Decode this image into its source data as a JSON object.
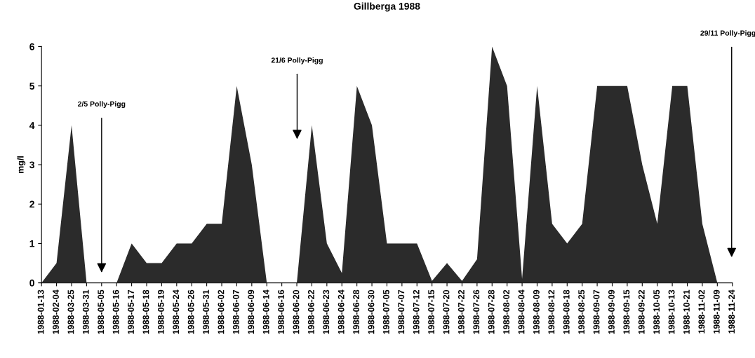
{
  "chart_data": {
    "type": "area",
    "title": "Gillberga 1988",
    "ylabel": "mg/l",
    "categories": [
      "1988-01-13",
      "1988-02-04",
      "1988-03-25",
      "1988-03-31",
      "1988-05-05",
      "1988-05-16",
      "1988-05-17",
      "1988-05-18",
      "1988-05-19",
      "1988-05-24",
      "1988-05-26",
      "1988-05-31",
      "1988-06-02",
      "1988-06-07",
      "1988-06-09",
      "1988-06-14",
      "1988-06-16",
      "1988-06-20",
      "1988-06-22",
      "1988-06-23",
      "1988-06-24",
      "1988-06-28",
      "1988-06-30",
      "1988-07-05",
      "1988-07-07",
      "1988-07-12",
      "1988-07-15",
      "1988-07-20",
      "1988-07-22",
      "1988-07-26",
      "1988-07-28",
      "1988-08-02",
      "1988-08-04",
      "1988-08-09",
      "1988-08-12",
      "1988-08-18",
      "1988-08-25",
      "1988-09-07",
      "1988-09-09",
      "1988-09-15",
      "1988-09-22",
      "1988-10-05",
      "1988-10-13",
      "1988-10-21",
      "1988-11-02",
      "1988-11-09",
      "1988-11-24"
    ],
    "series": [
      {
        "color": "#2b2b2b",
        "values": [
          0,
          0.5,
          4,
          0,
          0,
          0,
          1,
          0.5,
          0.5,
          1,
          1,
          1.5,
          1.5,
          5,
          3,
          0,
          0,
          0,
          4,
          1,
          0.25,
          5,
          4,
          1,
          1,
          1,
          0.05,
          0.5,
          0.05,
          0.6,
          6,
          5,
          0.1,
          5,
          1.5,
          1,
          1.5,
          5,
          5,
          5,
          3,
          1.5,
          5,
          5,
          1.5,
          0,
          null
        ]
      }
    ],
    "ylim": [
      0,
      6
    ],
    "yticks": [
      0,
      1,
      2,
      3,
      4,
      5,
      6
    ],
    "grid": false,
    "annotations": [
      "2/5 Polly-Pigg",
      "21/6 Polly-Pigg",
      "29/11 Polly-Pigg"
    ]
  }
}
